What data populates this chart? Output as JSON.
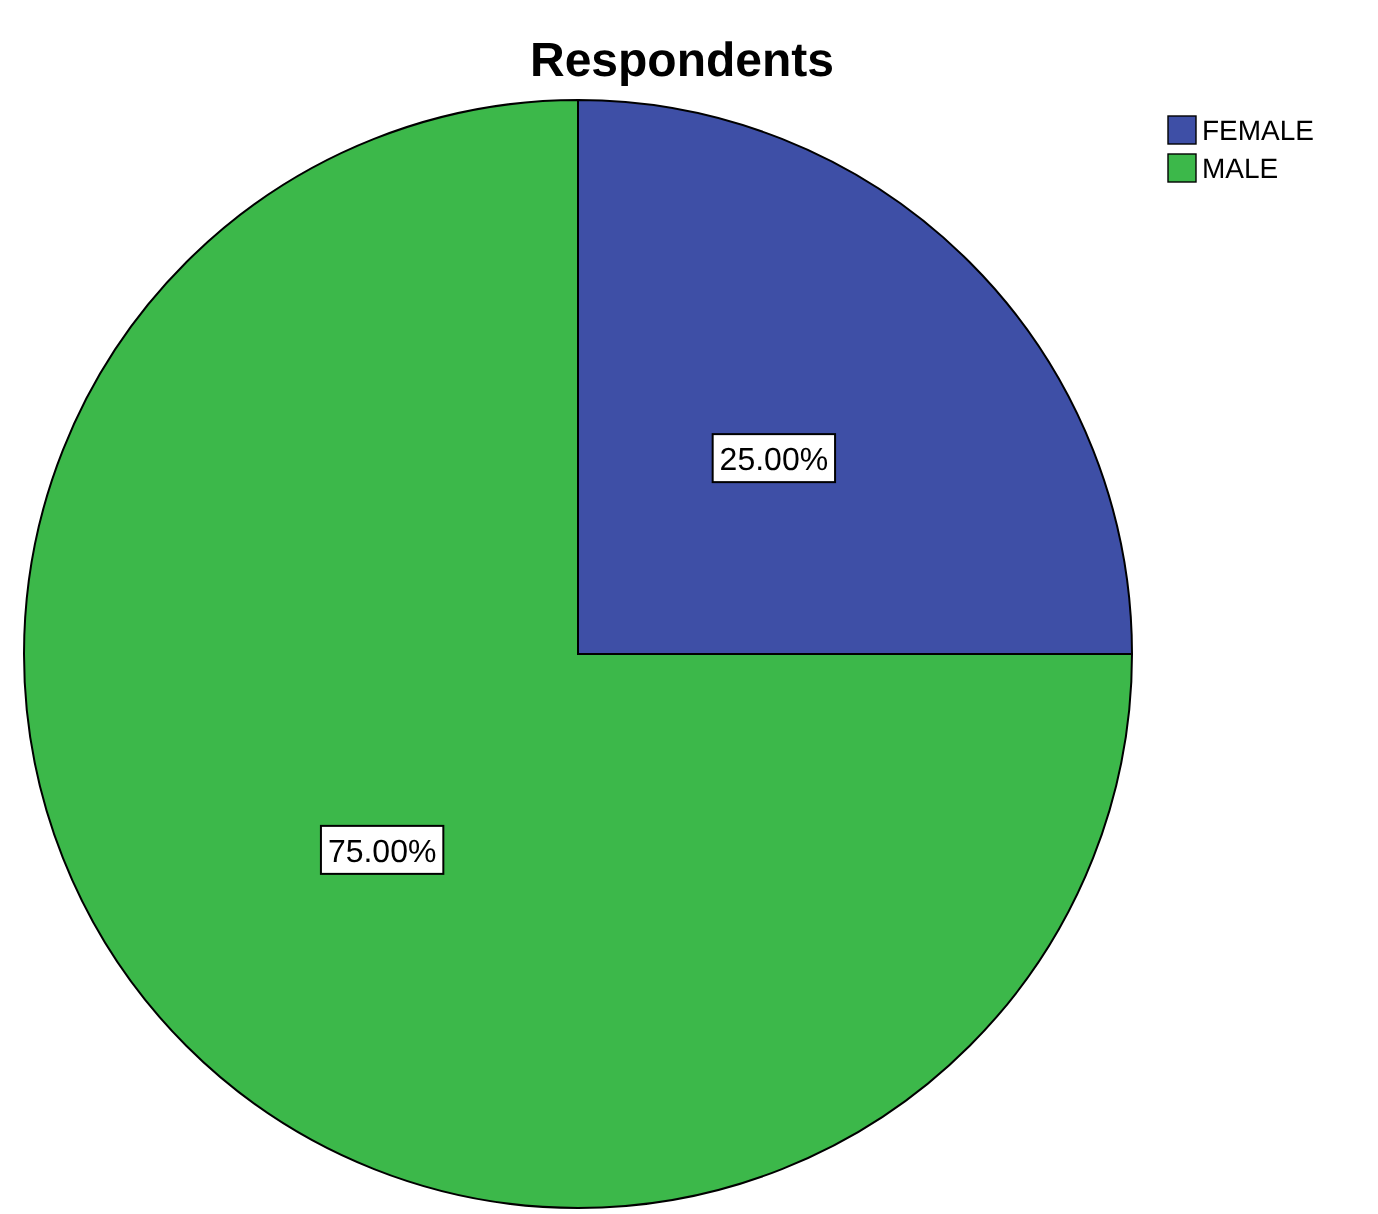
{
  "chart_data": {
    "type": "pie",
    "title": "Respondents",
    "categories": [
      "FEMALE",
      "MALE"
    ],
    "values": [
      25,
      75
    ],
    "value_labels": [
      "25.00%",
      "75.00%"
    ],
    "colors": [
      "#3e4fa6",
      "#3cb84a"
    ],
    "legend": "top right"
  }
}
